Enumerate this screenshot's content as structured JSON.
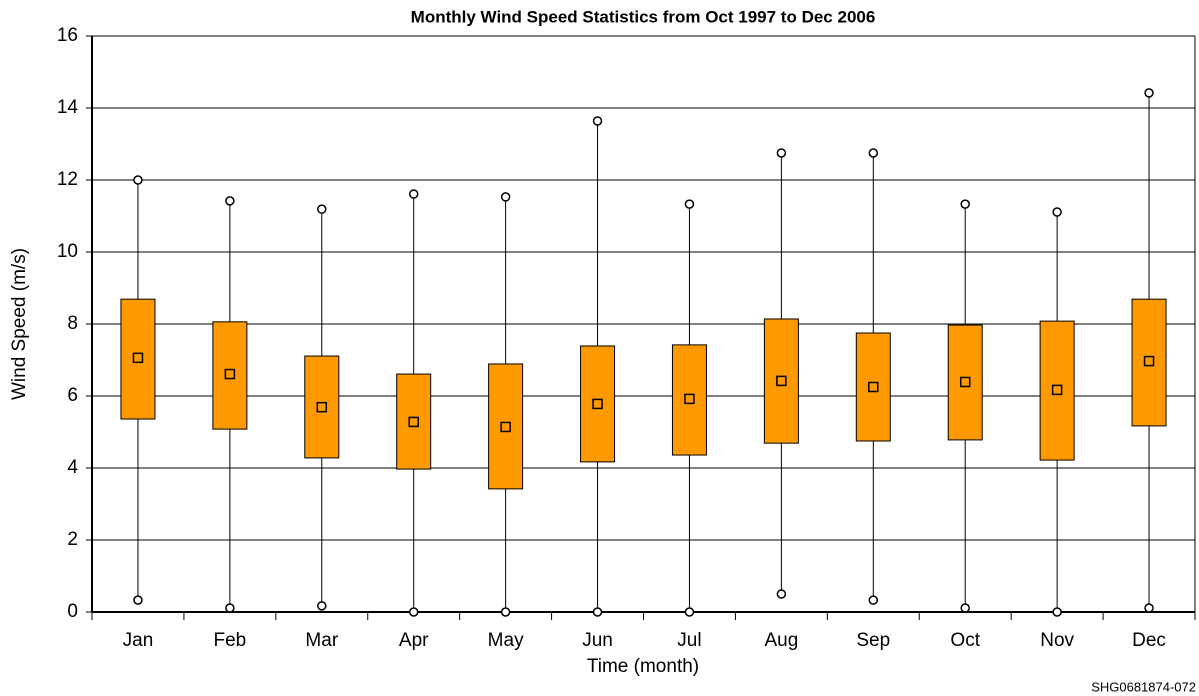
{
  "chart_data": {
    "type": "box",
    "title": "Monthly Wind Speed Statistics from Oct 1997 to Dec 2006",
    "x_label": "Time (month)",
    "y_label": "Wind Speed (m/s)",
    "footnote": "SHG0681874-072",
    "categories": [
      "Jan",
      "Feb",
      "Mar",
      "Apr",
      "May",
      "Jun",
      "Jul",
      "Aug",
      "Sep",
      "Oct",
      "Nov",
      "Dec"
    ],
    "min": [
      0.33,
      0.11,
      0.17,
      0,
      0,
      0,
      0,
      0.5,
      0.33,
      0.11,
      0,
      0.11
    ],
    "q1": [
      5.36,
      5.08,
      4.28,
      3.97,
      3.42,
      4.17,
      4.36,
      4.69,
      4.75,
      4.78,
      4.22,
      5.17
    ],
    "mean": [
      7.06,
      6.61,
      5.69,
      5.28,
      5.14,
      5.78,
      5.92,
      6.42,
      6.25,
      6.39,
      6.17,
      6.97
    ],
    "q3": [
      8.69,
      8.06,
      7.11,
      6.61,
      6.89,
      7.39,
      7.42,
      8.14,
      7.75,
      7.97,
      8.08,
      8.69
    ],
    "max": [
      12.0,
      11.42,
      11.19,
      11.61,
      11.53,
      13.64,
      11.33,
      12.75,
      12.75,
      11.33,
      11.11,
      14.42
    ],
    "color": "#ff9900",
    "ylim": [
      0,
      16
    ],
    "yticks": [
      0,
      2,
      4,
      6,
      8,
      10,
      12,
      14,
      16
    ],
    "grid": true
  }
}
